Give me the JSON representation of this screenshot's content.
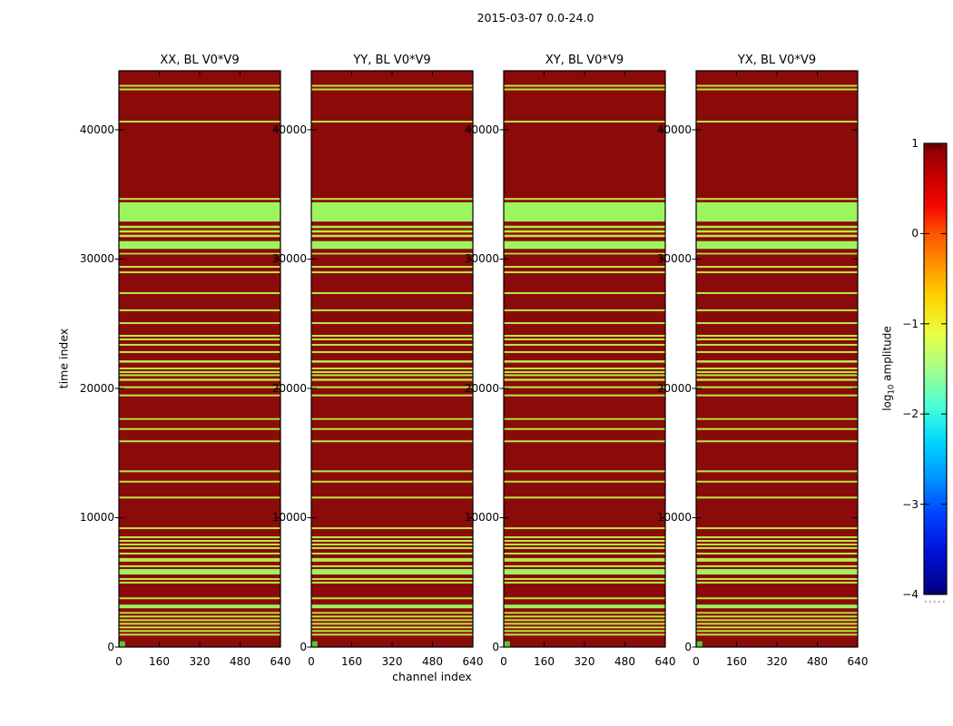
{
  "figure": {
    "title": "2015-03-07 0.0-24.0",
    "xlabel": "channel index",
    "ylabel": "time index",
    "colorbar_label_pre": "log",
    "colorbar_label_sub": "10",
    "colorbar_label_post": " amplitude"
  },
  "chart_data": {
    "type": "heatmap",
    "panels": [
      {
        "title": "XX, BL V0*V9"
      },
      {
        "title": "YY, BL V0*V9"
      },
      {
        "title": "XY, BL V0*V9"
      },
      {
        "title": "YX, BL V0*V9"
      }
    ],
    "xlim": [
      0,
      640
    ],
    "ylim": [
      0,
      44560
    ],
    "x_ticks": [
      0,
      160,
      320,
      480,
      640
    ],
    "y_ticks": [
      0,
      10000,
      20000,
      30000,
      40000
    ],
    "colors": {
      "background_high": "#8b0a0a",
      "stripe": "#b7ea3f",
      "band": "#9df55e",
      "corner_square": "#55cc33",
      "axis": "#000000"
    },
    "stripes_note": "horizontal low-amplitude stripes shared by all four panels; [time_start, time_end, bright_band_flag]",
    "stripes": [
      [
        890,
        1030,
        0
      ],
      [
        1170,
        1310,
        0
      ],
      [
        1450,
        1590,
        0
      ],
      [
        1730,
        1870,
        0
      ],
      [
        2010,
        2150,
        0
      ],
      [
        2290,
        2430,
        0
      ],
      [
        2580,
        2710,
        0
      ],
      [
        3000,
        3280,
        1
      ],
      [
        3700,
        3840,
        0
      ],
      [
        4910,
        5050,
        0
      ],
      [
        5190,
        5330,
        0
      ],
      [
        5610,
        6030,
        1
      ],
      [
        6180,
        6320,
        0
      ],
      [
        6600,
        6880,
        0
      ],
      [
        7160,
        7300,
        0
      ],
      [
        7580,
        7720,
        0
      ],
      [
        7860,
        8000,
        0
      ],
      [
        8140,
        8280,
        0
      ],
      [
        8420,
        8560,
        0
      ],
      [
        9120,
        9260,
        0
      ],
      [
        11490,
        11630,
        0
      ],
      [
        12720,
        12860,
        0
      ],
      [
        13520,
        13660,
        0
      ],
      [
        15840,
        15980,
        0
      ],
      [
        16790,
        16930,
        0
      ],
      [
        17570,
        17700,
        0
      ],
      [
        19390,
        19530,
        0
      ],
      [
        20020,
        20160,
        0
      ],
      [
        20580,
        20750,
        0
      ],
      [
        20950,
        21090,
        0
      ],
      [
        21190,
        21330,
        0
      ],
      [
        21470,
        21610,
        0
      ],
      [
        21990,
        22170,
        0
      ],
      [
        22740,
        22880,
        0
      ],
      [
        23300,
        23440,
        0
      ],
      [
        23720,
        23860,
        0
      ],
      [
        24000,
        24140,
        0
      ],
      [
        24980,
        25120,
        0
      ],
      [
        25970,
        26110,
        0
      ],
      [
        27300,
        27440,
        0
      ],
      [
        28910,
        29050,
        0
      ],
      [
        29330,
        29470,
        0
      ],
      [
        30360,
        30480,
        0
      ],
      [
        30790,
        31390,
        1
      ],
      [
        31700,
        31880,
        0
      ],
      [
        32050,
        32230,
        0
      ],
      [
        32400,
        32580,
        0
      ],
      [
        32900,
        34390,
        1
      ],
      [
        34580,
        34720,
        0
      ],
      [
        40560,
        40700,
        0
      ],
      [
        43050,
        43190,
        0
      ],
      [
        43330,
        43470,
        0
      ]
    ],
    "colorbar": {
      "lim": [
        -4,
        1
      ],
      "tick_values": [
        1,
        0,
        -1,
        -2,
        -3,
        -4
      ],
      "tick_labels": [
        "1",
        "0",
        "−1",
        "−2",
        "−3",
        "−4"
      ],
      "gradient": [
        {
          "o": 0.0,
          "c": "#7f0000"
        },
        {
          "o": 0.07,
          "c": "#c40000"
        },
        {
          "o": 0.14,
          "c": "#f50800"
        },
        {
          "o": 0.2,
          "c": "#ff5500"
        },
        {
          "o": 0.27,
          "c": "#ff9400"
        },
        {
          "o": 0.34,
          "c": "#ffd200"
        },
        {
          "o": 0.42,
          "c": "#eaff40"
        },
        {
          "o": 0.5,
          "c": "#a4ff8a"
        },
        {
          "o": 0.58,
          "c": "#4cffd4"
        },
        {
          "o": 0.66,
          "c": "#00d8ff"
        },
        {
          "o": 0.74,
          "c": "#0096ff"
        },
        {
          "o": 0.82,
          "c": "#0044ff"
        },
        {
          "o": 0.9,
          "c": "#0013dc"
        },
        {
          "o": 1.0,
          "c": "#00007f"
        }
      ]
    }
  }
}
